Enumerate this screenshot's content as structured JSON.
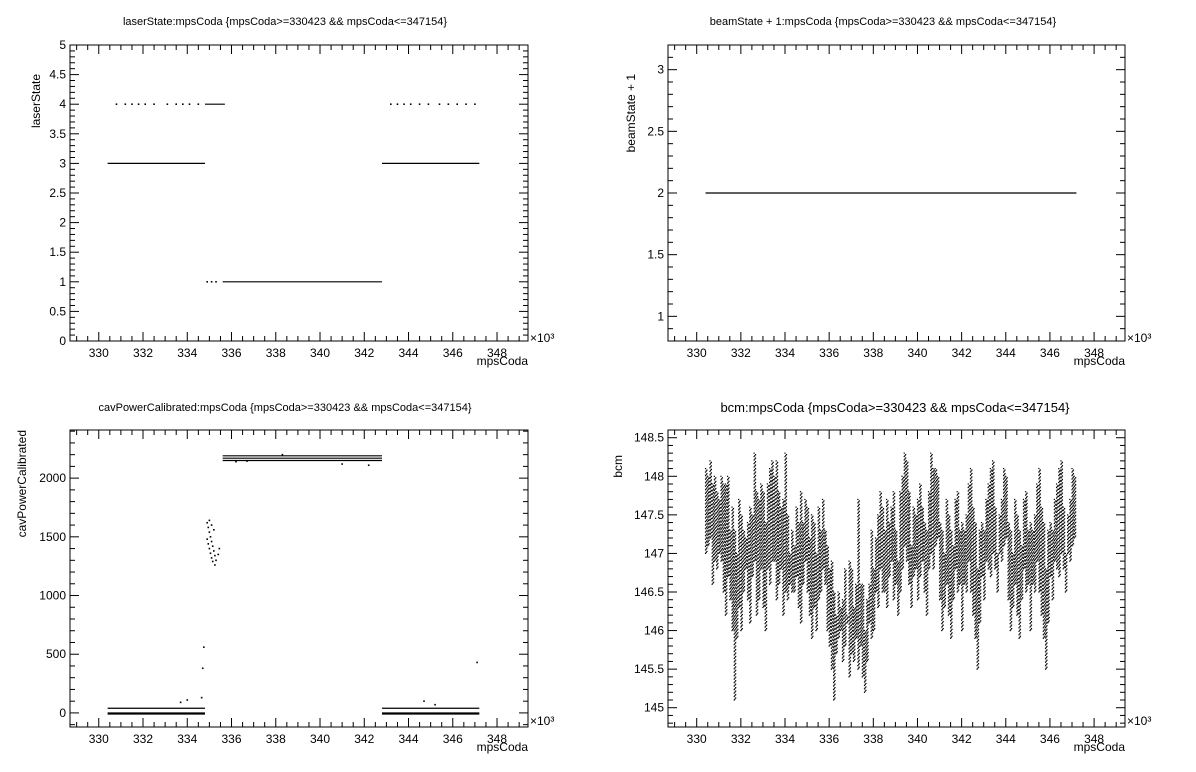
{
  "chart_data": [
    {
      "type": "scatter",
      "title": "laserState:mpsCoda {mpsCoda>=330423 && mpsCoda<=347154}",
      "xlabel": "mpsCoda",
      "ylabel": "laserState",
      "x_exponent_label": "×10³",
      "xlim": [
        328.7,
        349.4
      ],
      "ylim": [
        0,
        5
      ],
      "xticks": [
        330,
        332,
        334,
        336,
        338,
        340,
        342,
        344,
        346,
        348
      ],
      "yticks": [
        0,
        0.5,
        1,
        1.5,
        2,
        2.5,
        3,
        3.5,
        4,
        4.5,
        5
      ],
      "ytick_labels": [
        "0",
        "0.5",
        "1",
        "1.5",
        "2",
        "2.5",
        "3",
        "3.5",
        "4",
        "4.5",
        "5"
      ],
      "segments": [
        {
          "x0": 330.4,
          "x1": 334.8,
          "y": 3
        },
        {
          "x0": 334.8,
          "x1": 335.7,
          "y": 4
        },
        {
          "x0": 335.6,
          "x1": 342.8,
          "y": 1
        },
        {
          "x0": 342.8,
          "x1": 347.2,
          "y": 3
        }
      ],
      "points": [
        {
          "x": 330.8,
          "y": 4
        },
        {
          "x": 331.2,
          "y": 4
        },
        {
          "x": 331.5,
          "y": 4
        },
        {
          "x": 331.8,
          "y": 4
        },
        {
          "x": 332.1,
          "y": 4
        },
        {
          "x": 332.5,
          "y": 4
        },
        {
          "x": 333.1,
          "y": 4
        },
        {
          "x": 333.5,
          "y": 4
        },
        {
          "x": 333.8,
          "y": 4
        },
        {
          "x": 334.1,
          "y": 4
        },
        {
          "x": 334.5,
          "y": 4
        },
        {
          "x": 334.9,
          "y": 1
        },
        {
          "x": 335.1,
          "y": 1
        },
        {
          "x": 335.3,
          "y": 1
        },
        {
          "x": 343.2,
          "y": 4
        },
        {
          "x": 343.5,
          "y": 4
        },
        {
          "x": 343.8,
          "y": 4
        },
        {
          "x": 344.1,
          "y": 4
        },
        {
          "x": 344.5,
          "y": 4
        },
        {
          "x": 344.9,
          "y": 4
        },
        {
          "x": 345.4,
          "y": 4
        },
        {
          "x": 345.8,
          "y": 4
        },
        {
          "x": 346.2,
          "y": 4
        },
        {
          "x": 346.6,
          "y": 4
        },
        {
          "x": 347.0,
          "y": 4
        }
      ]
    },
    {
      "type": "scatter",
      "title": "beamState + 1:mpsCoda {mpsCoda>=330423 && mpsCoda<=347154}",
      "xlabel": "mpsCoda",
      "ylabel": "beamState + 1",
      "x_exponent_label": "×10³",
      "xlim": [
        328.7,
        349.4
      ],
      "ylim": [
        0.8,
        3.2
      ],
      "xticks": [
        330,
        332,
        334,
        336,
        338,
        340,
        342,
        344,
        346,
        348
      ],
      "yticks": [
        1,
        1.5,
        2,
        2.5,
        3
      ],
      "ytick_labels": [
        "1",
        "1.5",
        "2",
        "2.5",
        "3"
      ],
      "segments": [
        {
          "x0": 330.4,
          "x1": 347.2,
          "y": 2
        }
      ],
      "points": []
    },
    {
      "type": "scatter",
      "title": "cavPowerCalibrated:mpsCoda {mpsCoda>=330423 && mpsCoda<=347154}",
      "xlabel": "mpsCoda",
      "ylabel": "cavPowerCalibrated",
      "x_exponent_label": "×10³",
      "xlim": [
        328.7,
        349.4
      ],
      "ylim": [
        -120,
        2410
      ],
      "xticks": [
        330,
        332,
        334,
        336,
        338,
        340,
        342,
        344,
        346,
        348
      ],
      "yticks": [
        0,
        500,
        1000,
        1500,
        2000
      ],
      "ytick_labels": [
        "0",
        "500",
        "1000",
        "1500",
        "2000"
      ],
      "segments": [
        {
          "x0": 330.4,
          "x1": 334.8,
          "y": 40
        },
        {
          "x0": 330.4,
          "x1": 334.8,
          "y": 0
        },
        {
          "x0": 330.4,
          "x1": 334.8,
          "y": -10
        },
        {
          "x0": 335.6,
          "x1": 342.8,
          "y": 2190
        },
        {
          "x0": 335.6,
          "x1": 342.8,
          "y": 2170
        },
        {
          "x0": 335.6,
          "x1": 342.8,
          "y": 2150
        },
        {
          "x0": 342.8,
          "x1": 347.2,
          "y": 40
        },
        {
          "x0": 342.8,
          "x1": 347.2,
          "y": 0
        },
        {
          "x0": 342.8,
          "x1": 347.2,
          "y": -10
        }
      ],
      "points": [
        {
          "x": 334.7,
          "y": 380
        },
        {
          "x": 334.75,
          "y": 560
        },
        {
          "x": 334.65,
          "y": 130
        },
        {
          "x": 334.9,
          "y": 1620
        },
        {
          "x": 334.95,
          "y": 1580
        },
        {
          "x": 335.0,
          "y": 1540
        },
        {
          "x": 335.05,
          "y": 1500
        },
        {
          "x": 335.1,
          "y": 1460
        },
        {
          "x": 335.15,
          "y": 1420
        },
        {
          "x": 335.2,
          "y": 1380
        },
        {
          "x": 335.25,
          "y": 1340
        },
        {
          "x": 335.3,
          "y": 1300
        },
        {
          "x": 334.9,
          "y": 1480
        },
        {
          "x": 334.95,
          "y": 1440
        },
        {
          "x": 335.0,
          "y": 1400
        },
        {
          "x": 335.05,
          "y": 1360
        },
        {
          "x": 335.1,
          "y": 1320
        },
        {
          "x": 335.15,
          "y": 1290
        },
        {
          "x": 335.4,
          "y": 1350
        },
        {
          "x": 335.45,
          "y": 1400
        },
        {
          "x": 335.0,
          "y": 1640
        },
        {
          "x": 335.1,
          "y": 1600
        },
        {
          "x": 335.2,
          "y": 1560
        },
        {
          "x": 335.25,
          "y": 1260
        },
        {
          "x": 336.2,
          "y": 2140
        },
        {
          "x": 336.7,
          "y": 2145
        },
        {
          "x": 338.3,
          "y": 2200
        },
        {
          "x": 341.0,
          "y": 2120
        },
        {
          "x": 342.2,
          "y": 2110
        },
        {
          "x": 347.1,
          "y": 430
        },
        {
          "x": 333.7,
          "y": 90
        },
        {
          "x": 334.0,
          "y": 110
        },
        {
          "x": 344.7,
          "y": 100
        },
        {
          "x": 345.2,
          "y": 70
        }
      ]
    },
    {
      "type": "scatter",
      "title": "bcm:mpsCoda {mpsCoda>=330423 && mpsCoda<=347154}",
      "xlabel": "mpsCoda",
      "ylabel": "bcm",
      "x_exponent_label": "×10³",
      "xlim": [
        328.7,
        349.4
      ],
      "ylim": [
        144.75,
        148.6
      ],
      "xticks": [
        330,
        332,
        334,
        336,
        338,
        340,
        342,
        344,
        346,
        348
      ],
      "yticks": [
        145,
        145.5,
        146,
        146.5,
        147,
        147.5,
        148,
        148.5
      ],
      "ytick_labels": [
        "145",
        "145.5",
        "146",
        "146.5",
        "147",
        "147.5",
        "148",
        "148.5"
      ],
      "x_start": 330.4,
      "x_end": 347.2,
      "step": 0.1,
      "envelope": [
        [
          147.0,
          148.1
        ],
        [
          147.1,
          148.0
        ],
        [
          147.2,
          148.2
        ],
        [
          146.6,
          147.9
        ],
        [
          146.9,
          148.0
        ],
        [
          146.8,
          147.8
        ],
        [
          147.0,
          147.7
        ],
        [
          146.9,
          148.0
        ],
        [
          146.5,
          147.9
        ],
        [
          146.2,
          147.9
        ],
        [
          146.7,
          148.0
        ],
        [
          146.4,
          147.3
        ],
        [
          146.0,
          147.6
        ],
        [
          145.1,
          147.3
        ],
        [
          145.9,
          147.0
        ],
        [
          146.3,
          147.7
        ],
        [
          146.0,
          147.5
        ],
        [
          146.5,
          147.3
        ],
        [
          146.8,
          147.2
        ],
        [
          146.4,
          147.4
        ],
        [
          146.1,
          147.6
        ],
        [
          146.7,
          147.5
        ],
        [
          146.9,
          148.3
        ],
        [
          146.2,
          147.8
        ],
        [
          146.4,
          147.7
        ],
        [
          146.8,
          147.9
        ],
        [
          146.3,
          147.8
        ],
        [
          146.0,
          147.4
        ],
        [
          146.8,
          147.9
        ],
        [
          146.6,
          148.1
        ],
        [
          146.9,
          148.2
        ],
        [
          146.9,
          148.0
        ],
        [
          146.4,
          148.2
        ],
        [
          146.6,
          147.8
        ],
        [
          146.8,
          147.6
        ],
        [
          146.2,
          147.7
        ],
        [
          146.5,
          148.3
        ],
        [
          146.4,
          147.5
        ],
        [
          146.6,
          147.0
        ],
        [
          146.5,
          147.3
        ],
        [
          146.5,
          147.1
        ],
        [
          146.7,
          147.6
        ],
        [
          146.3,
          147.4
        ],
        [
          146.1,
          147.8
        ],
        [
          146.6,
          147.4
        ],
        [
          146.9,
          147.7
        ],
        [
          146.5,
          147.6
        ],
        [
          146.2,
          147.2
        ],
        [
          145.9,
          147.5
        ],
        [
          146.3,
          147.4
        ],
        [
          146.0,
          147.0
        ],
        [
          146.4,
          147.6
        ],
        [
          146.5,
          147.3
        ],
        [
          146.8,
          147.7
        ],
        [
          146.6,
          147.3
        ],
        [
          146.0,
          147.1
        ],
        [
          145.8,
          146.8
        ],
        [
          145.5,
          146.9
        ],
        [
          145.1,
          146.5
        ],
        [
          145.7,
          146.2
        ],
        [
          145.9,
          146.5
        ],
        [
          146.0,
          146.3
        ],
        [
          145.6,
          146.4
        ],
        [
          145.8,
          146.8
        ],
        [
          146.1,
          146.2
        ],
        [
          145.4,
          146.9
        ],
        [
          145.7,
          146.8
        ],
        [
          145.6,
          146.3
        ],
        [
          145.9,
          146.6
        ],
        [
          145.5,
          147.7
        ],
        [
          145.8,
          146.6
        ],
        [
          145.4,
          146.6
        ],
        [
          145.2,
          146.0
        ],
        [
          145.6,
          146.4
        ],
        [
          146.1,
          146.6
        ],
        [
          145.9,
          147.3
        ],
        [
          146.0,
          146.8
        ],
        [
          146.5,
          147.2
        ],
        [
          146.3,
          147.5
        ],
        [
          146.8,
          147.8
        ],
        [
          146.5,
          147.6
        ],
        [
          146.5,
          147.3
        ],
        [
          146.3,
          147.7
        ],
        [
          146.7,
          147.4
        ],
        [
          146.9,
          147.6
        ],
        [
          146.4,
          147.8
        ],
        [
          146.6,
          147.3
        ],
        [
          146.2,
          146.9
        ],
        [
          146.5,
          147.8
        ],
        [
          146.8,
          148.0
        ],
        [
          147.1,
          148.3
        ],
        [
          146.9,
          148.2
        ],
        [
          146.6,
          147.8
        ],
        [
          146.3,
          147.1
        ],
        [
          146.7,
          147.6
        ],
        [
          146.8,
          147.5
        ],
        [
          146.4,
          147.7
        ],
        [
          146.7,
          147.9
        ],
        [
          146.9,
          147.6
        ],
        [
          146.5,
          147.4
        ],
        [
          146.2,
          147.3
        ],
        [
          146.8,
          147.8
        ],
        [
          147.0,
          148.3
        ],
        [
          146.8,
          148.1
        ],
        [
          147.1,
          148.1
        ],
        [
          147.2,
          148.0
        ],
        [
          146.4,
          147.4
        ],
        [
          146.0,
          147.3
        ],
        [
          146.3,
          147.0
        ],
        [
          146.6,
          147.7
        ],
        [
          146.2,
          147.5
        ],
        [
          145.9,
          147.3
        ],
        [
          146.4,
          147.1
        ],
        [
          146.8,
          147.7
        ],
        [
          146.5,
          147.8
        ],
        [
          146.6,
          147.3
        ],
        [
          146.0,
          147.4
        ],
        [
          146.6,
          147.3
        ],
        [
          146.5,
          147.5
        ],
        [
          146.9,
          147.9
        ],
        [
          146.5,
          148.1
        ],
        [
          146.2,
          147.6
        ],
        [
          145.9,
          147.4
        ],
        [
          145.5,
          146.8
        ],
        [
          146.1,
          147.3
        ],
        [
          146.7,
          147.4
        ],
        [
          146.4,
          147.3
        ],
        [
          146.9,
          147.7
        ],
        [
          146.8,
          147.9
        ],
        [
          146.7,
          148.1
        ],
        [
          147.0,
          148.2
        ],
        [
          146.8,
          147.6
        ],
        [
          146.5,
          147.0
        ],
        [
          147.0,
          147.5
        ],
        [
          146.9,
          147.7
        ],
        [
          147.1,
          148.1
        ],
        [
          147.2,
          148.0
        ],
        [
          146.4,
          147.4
        ],
        [
          146.0,
          147.3
        ],
        [
          146.3,
          147.0
        ],
        [
          146.6,
          147.7
        ],
        [
          146.2,
          147.5
        ],
        [
          145.9,
          147.3
        ],
        [
          146.4,
          147.1
        ],
        [
          146.8,
          147.7
        ],
        [
          146.5,
          147.8
        ],
        [
          146.6,
          147.3
        ],
        [
          146.0,
          147.4
        ],
        [
          146.6,
          147.3
        ],
        [
          146.5,
          147.5
        ],
        [
          146.9,
          147.9
        ],
        [
          146.5,
          148.1
        ],
        [
          146.2,
          147.6
        ],
        [
          145.9,
          147.4
        ],
        [
          145.5,
          146.8
        ],
        [
          146.1,
          147.3
        ],
        [
          146.7,
          147.4
        ],
        [
          146.4,
          147.3
        ],
        [
          146.9,
          147.7
        ],
        [
          146.8,
          147.9
        ],
        [
          146.7,
          148.1
        ],
        [
          147.0,
          148.2
        ],
        [
          146.8,
          147.6
        ],
        [
          146.5,
          147.0
        ],
        [
          147.0,
          147.5
        ],
        [
          146.9,
          147.7
        ],
        [
          147.1,
          148.1
        ],
        [
          147.2,
          148.0
        ]
      ]
    }
  ]
}
